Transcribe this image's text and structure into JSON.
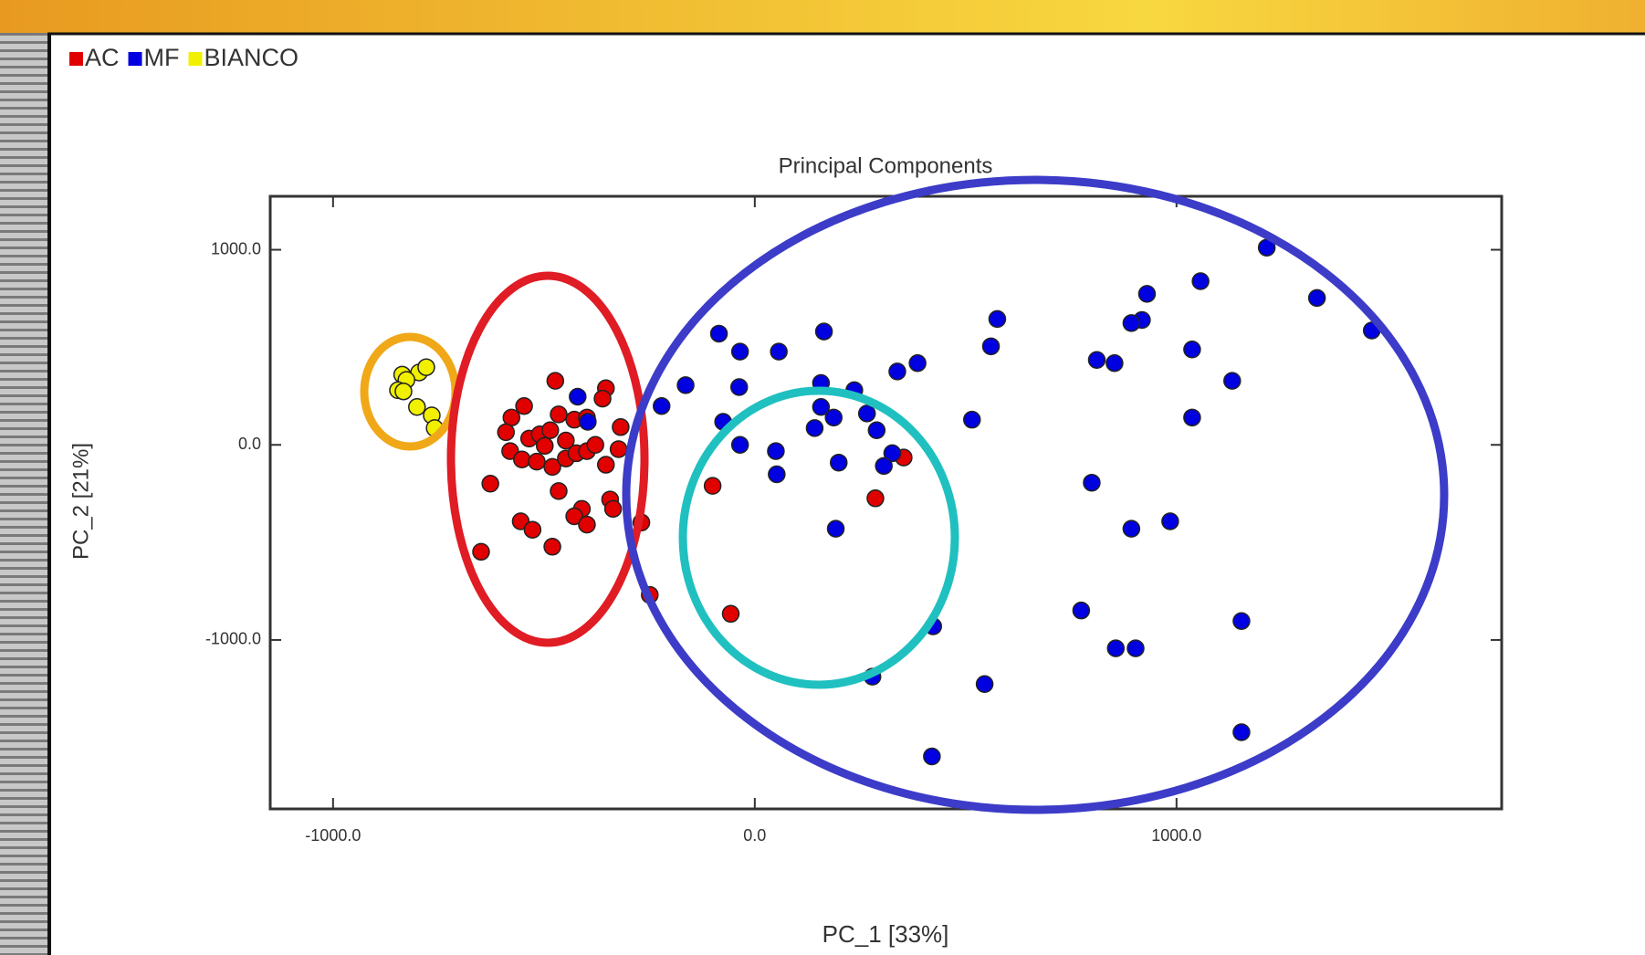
{
  "chart_data": {
    "type": "scatter",
    "title": "Principal Components",
    "x_label": "PC_1 [33%]",
    "y_label": "PC_2 [21%]",
    "xlim": [
      -1149,
      1771
    ],
    "ylim": [
      -1866,
      1274
    ],
    "xticks": [
      {
        "value": -1000,
        "label": "-1000.0"
      },
      {
        "value": 0,
        "label": "0.0"
      },
      {
        "value": 1000,
        "label": "1000.0"
      }
    ],
    "yticks": [
      {
        "value": -1000,
        "label": "-1000.0"
      },
      {
        "value": 0,
        "label": "0.0"
      },
      {
        "value": 1000,
        "label": "1000.0"
      }
    ],
    "grid": false,
    "legend": "top-left",
    "series": [
      {
        "name": "AC",
        "color": "#e00000",
        "x": [
          -473,
          -353,
          -361,
          -547,
          -577,
          -590,
          -535,
          -510,
          -485,
          -465,
          -428,
          -398,
          -318,
          -580,
          -552,
          -517,
          -480,
          -448,
          -423,
          -398,
          -378,
          -353,
          -323,
          -627,
          -465,
          -343,
          -410,
          -555,
          -527,
          -428,
          -398,
          -336,
          -649,
          -480,
          -269,
          -249,
          -100,
          -57,
          286,
          353,
          -448,
          -498
        ],
        "values": [
          328,
          290,
          237,
          199,
          140,
          65,
          32,
          54,
          75,
          156,
          129,
          140,
          91,
          -32,
          -75,
          -86,
          -113,
          -70,
          -43,
          -32,
          0,
          -102,
          -22,
          -199,
          -237,
          -280,
          -328,
          -392,
          -435,
          -366,
          -409,
          -328,
          -548,
          -522,
          -398,
          -769,
          -210,
          -866,
          -274,
          -65,
          22,
          -5
        ]
      },
      {
        "name": "MF",
        "color": "#0000e0",
        "x": [
          1214,
          1333,
          1463,
          1057,
          930,
          918,
          893,
          1037,
          1132,
          1037,
          811,
          853,
          575,
          560,
          386,
          338,
          515,
          164,
          57,
          -35,
          -85,
          -164,
          -221,
          -37,
          -75,
          -35,
          50,
          52,
          157,
          157,
          187,
          142,
          236,
          266,
          289,
          326,
          306,
          199,
          192,
          -420,
          -396,
          799,
          893,
          985,
          774,
          856,
          903,
          1154,
          1154,
          423,
          279,
          545,
          420
        ],
        "values": [
          1011,
          753,
          586,
          839,
          774,
          640,
          624,
          489,
          328,
          140,
          435,
          419,
          645,
          505,
          419,
          376,
          129,
          581,
          478,
          478,
          570,
          306,
          199,
          296,
          118,
          0,
          -32,
          -151,
          317,
          194,
          140,
          86,
          280,
          161,
          75,
          -43,
          -108,
          -91,
          -430,
          247,
          118,
          -194,
          -430,
          -392,
          -849,
          -1043,
          -1043,
          -903,
          -1473,
          -930,
          -1188,
          -1226,
          -1597
        ]
      },
      {
        "name": "BIANCO",
        "color": "#f0f000",
        "x": [
          -836,
          -796,
          -779,
          -826,
          -846,
          -833,
          -801,
          -766,
          -759
        ],
        "values": [
          360,
          371,
          398,
          333,
          280,
          274,
          194,
          151,
          86
        ]
      }
    ]
  }
}
